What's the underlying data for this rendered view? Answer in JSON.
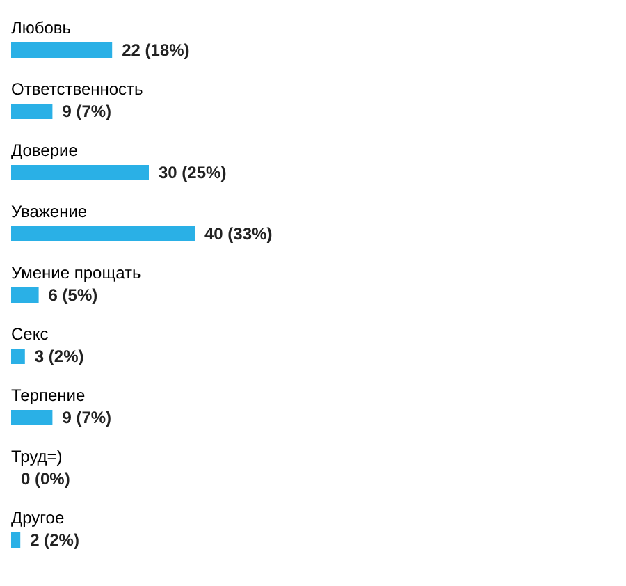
{
  "chart_data": {
    "type": "bar",
    "orientation": "horizontal",
    "categories": [
      "Любовь",
      "Ответственность",
      "Доверие",
      "Уважение",
      "Умение прощать",
      "Секс",
      "Терпение",
      "Труд=)",
      "Другое"
    ],
    "values": [
      22,
      9,
      30,
      40,
      6,
      3,
      9,
      0,
      2
    ],
    "value_labels": [
      "22 (18%)",
      "9 (7%)",
      "30 (25%)",
      "40 (33%)",
      "6 (5%)",
      "3 (2%)",
      "9 (7%)",
      "0 (0%)",
      "2 (2%)"
    ],
    "color": "#2ab0e6",
    "tick_labels": false
  }
}
